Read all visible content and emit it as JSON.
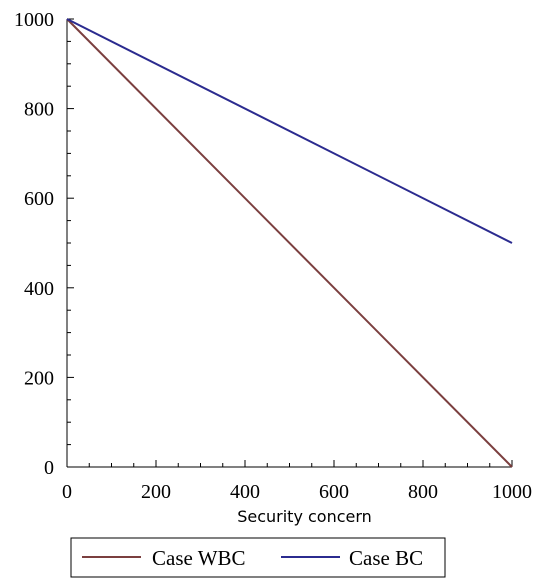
{
  "chart_data": {
    "type": "line",
    "title": "",
    "xlabel": "Security concern",
    "ylabel": "",
    "xlim": [
      0,
      1000
    ],
    "ylim": [
      0,
      1000
    ],
    "xticks": [
      0,
      200,
      400,
      600,
      800,
      1000
    ],
    "yticks": [
      0,
      200,
      400,
      600,
      800,
      1000
    ],
    "grid": false,
    "legend_position": "bottom",
    "series": [
      {
        "name": "Case WBC",
        "color": "#7b3f3f",
        "x": [
          0,
          1000
        ],
        "y": [
          1000,
          0
        ]
      },
      {
        "name": "Case BC",
        "color": "#2b2b8f",
        "x": [
          0,
          1000
        ],
        "y": [
          1000,
          500
        ]
      }
    ]
  }
}
